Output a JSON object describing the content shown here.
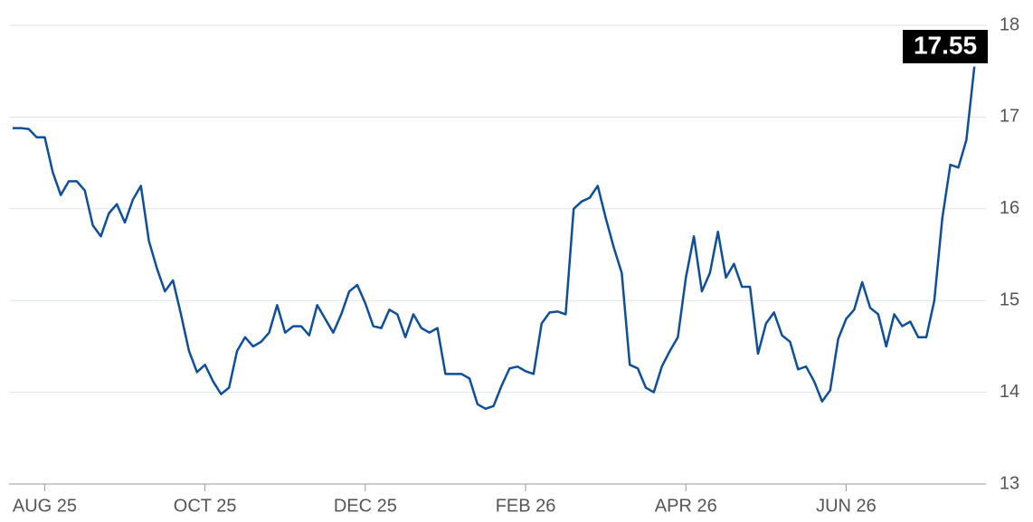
{
  "chart_data": {
    "type": "line",
    "color": "#0d4f9c",
    "categories": [
      null,
      null,
      null,
      null,
      "AUG 25",
      null,
      null,
      null,
      null,
      null,
      null,
      null,
      null,
      null,
      null,
      null,
      null,
      null,
      null,
      null,
      null,
      null,
      null,
      null,
      "OCT 25",
      null,
      null,
      null,
      null,
      null,
      null,
      null,
      null,
      null,
      null,
      null,
      null,
      null,
      null,
      null,
      null,
      null,
      null,
      null,
      "DEC 25",
      null,
      null,
      null,
      null,
      null,
      null,
      null,
      null,
      null,
      null,
      null,
      null,
      null,
      null,
      null,
      null,
      null,
      null,
      null,
      "FEB 26",
      null,
      null,
      null,
      null,
      null,
      null,
      null,
      null,
      null,
      null,
      null,
      null,
      null,
      null,
      null,
      null,
      null,
      null,
      null,
      "APR 26",
      null,
      null,
      null,
      null,
      null,
      null,
      null,
      null,
      null,
      null,
      null,
      null,
      null,
      null,
      null,
      null,
      null,
      null,
      null,
      "JUN 26",
      null,
      null,
      null,
      null,
      null,
      null,
      null,
      null,
      null,
      null,
      null,
      null,
      null,
      null,
      null,
      null
    ],
    "values": [
      16.88,
      16.88,
      16.87,
      16.78,
      16.78,
      16.4,
      16.15,
      16.3,
      16.3,
      16.2,
      15.82,
      15.7,
      15.95,
      16.05,
      15.85,
      16.1,
      16.25,
      15.65,
      15.35,
      15.1,
      15.22,
      14.85,
      14.45,
      14.22,
      14.3,
      14.12,
      13.98,
      14.05,
      14.45,
      14.6,
      14.5,
      14.55,
      14.65,
      14.95,
      14.65,
      14.72,
      14.72,
      14.62,
      14.95,
      14.8,
      14.65,
      14.85,
      15.1,
      15.17,
      14.97,
      14.72,
      14.7,
      14.9,
      14.85,
      14.6,
      14.85,
      14.7,
      14.65,
      14.7,
      14.2,
      14.2,
      14.2,
      14.15,
      13.87,
      13.82,
      13.85,
      14.07,
      14.26,
      14.28,
      14.23,
      14.2,
      14.75,
      14.87,
      14.88,
      14.85,
      16.0,
      16.08,
      16.12,
      16.25,
      15.9,
      15.58,
      15.3,
      14.3,
      14.26,
      14.05,
      14.0,
      14.28,
      14.45,
      14.6,
      15.25,
      15.7,
      15.1,
      15.3,
      15.75,
      15.25,
      15.4,
      15.15,
      15.15,
      14.42,
      14.75,
      14.87,
      14.62,
      14.55,
      14.25,
      14.28,
      14.12,
      13.9,
      14.02,
      14.58,
      14.8,
      14.9,
      15.2,
      14.92,
      14.85,
      14.5,
      14.85,
      14.72,
      14.77,
      14.6,
      14.6,
      15.0,
      15.9,
      16.48,
      16.45,
      16.75,
      17.55
    ],
    "ylim": [
      13,
      18
    ],
    "yticks": [
      13,
      14,
      15,
      16,
      17,
      18
    ],
    "grid": true
  }
}
